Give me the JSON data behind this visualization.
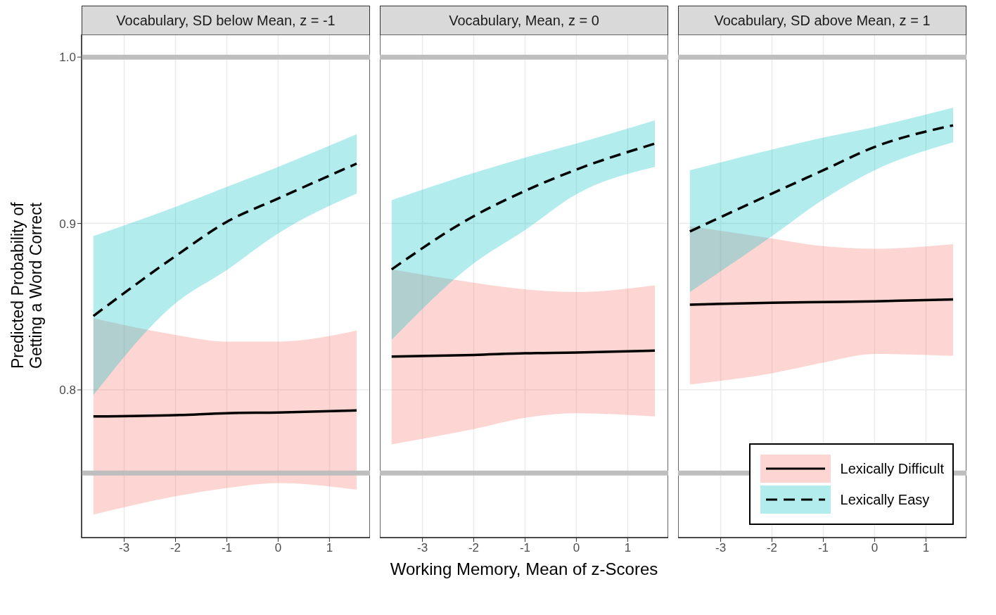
{
  "chart_data": [
    {
      "type": "line",
      "title": "Vocabulary, SD below Mean, z = -1",
      "ylabel": "Predicted Probability of\nGetting a Word Correct",
      "x": [
        -3.6,
        -2,
        -1,
        0,
        1.53
      ],
      "xlim": [
        -3.83,
        1.79
      ],
      "xticks": [
        -3,
        -2,
        -1,
        0,
        1
      ],
      "ylim": [
        0.7112,
        1.0136
      ],
      "yticks": [
        0.8,
        0.9,
        {
          "value": 1,
          "label": "1.0"
        }
      ],
      "grid": true,
      "ref_lines": [
        {
          "axis": "y",
          "value": 1,
          "color": "#bebebe"
        },
        {
          "axis": "y",
          "value": 0.75,
          "color": "#bebebe"
        }
      ],
      "series": [
        {
          "color": "#000000",
          "line_style": "solid",
          "values": [
            0.784,
            0.7848,
            0.786,
            0.7864,
            0.7876
          ],
          "lower": [
            0.725,
            0.736,
            0.741,
            0.744,
            0.74
          ],
          "upper": [
            0.843,
            0.833,
            0.829,
            0.829,
            0.8356
          ]
        },
        {
          "color": "#000000",
          "line_style": "dashed",
          "values": [
            0.8444,
            0.8804,
            0.901,
            0.915,
            0.936
          ],
          "lower": [
            0.7968,
            0.852,
            0.872,
            0.894,
            0.918
          ],
          "upper": [
            0.8924,
            0.91,
            0.922,
            0.934,
            0.9536
          ]
        }
      ]
    },
    {
      "type": "line",
      "title": "Vocabulary, Mean, z = 0",
      "xlabel": "Working Memory, Mean of z-Scores",
      "x": [
        -3.6,
        -2,
        -1,
        0,
        1.53
      ],
      "xlim": [
        -3.83,
        1.79
      ],
      "xticks": [
        -3,
        -2,
        -1,
        0,
        1
      ],
      "ylim": [
        0.7112,
        1.0136
      ],
      "yticks": [
        0.8,
        0.9,
        1
      ],
      "grid": true,
      "tick_labels": "x",
      "ref_lines": [
        {
          "axis": "y",
          "value": 1,
          "color": "#bebebe"
        },
        {
          "axis": "y",
          "value": 0.75,
          "color": "#bebebe"
        }
      ],
      "series": [
        {
          "color": "#000000",
          "line_style": "solid",
          "values": [
            0.82,
            0.821,
            0.822,
            0.8224,
            0.8236
          ],
          "lower": [
            0.7672,
            0.7764,
            0.7832,
            0.786,
            0.784
          ],
          "upper": [
            0.8724,
            0.8644,
            0.8604,
            0.8588,
            0.8628
          ]
        },
        {
          "color": "#000000",
          "line_style": "dashed",
          "values": [
            0.8724,
            0.9044,
            0.9196,
            0.9324,
            0.948
          ],
          "lower": [
            0.83,
            0.876,
            0.896,
            0.9176,
            0.934
          ],
          "upper": [
            0.914,
            0.9304,
            0.9396,
            0.948,
            0.962
          ]
        }
      ]
    },
    {
      "type": "line",
      "title": "Vocabulary, SD above Mean, z = 1",
      "x": [
        -3.6,
        -2,
        -1,
        0,
        1.53
      ],
      "xlim": [
        -3.83,
        1.79
      ],
      "xticks": [
        -3,
        -2,
        -1,
        0,
        1
      ],
      "ylim": [
        0.7112,
        1.0136
      ],
      "yticks": [
        0.8,
        0.9,
        1
      ],
      "grid": true,
      "tick_labels": "x",
      "legend": "bottom right",
      "ref_lines": [
        {
          "axis": "y",
          "value": 1,
          "color": "#bebebe"
        },
        {
          "axis": "y",
          "value": 0.75,
          "color": "#bebebe"
        }
      ],
      "series": [
        {
          "name": "Lexically Difficult",
          "color": "#000000",
          "line_style": "solid",
          "values": [
            0.8512,
            0.8524,
            0.8528,
            0.8532,
            0.8544
          ],
          "lower": [
            0.8032,
            0.81,
            0.8164,
            0.8216,
            0.8204
          ],
          "upper": [
            0.8984,
            0.891,
            0.8864,
            0.8848,
            0.8876
          ]
        },
        {
          "name": "Lexically Easy",
          "color": "#000000",
          "line_style": "dashed",
          "values": [
            0.8952,
            0.918,
            0.932,
            0.946,
            0.959
          ],
          "lower": [
            0.8588,
            0.8924,
            0.9144,
            0.932,
            0.9488
          ],
          "upper": [
            0.932,
            0.9444,
            0.9516,
            0.958,
            0.9696
          ]
        }
      ]
    }
  ]
}
